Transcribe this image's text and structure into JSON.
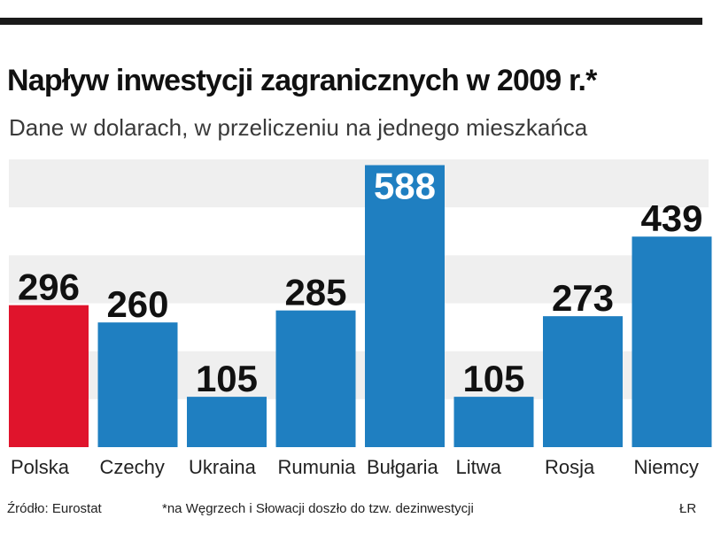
{
  "colors": {
    "highlight": "#e0142c",
    "bar": "#1f7fc1",
    "band": "#efefef",
    "value_dark": "#111111",
    "value_light": "#ffffff"
  },
  "chart_data": {
    "type": "bar",
    "title": "Napływ inwestycji zagranicznych w 2009 r.*",
    "subtitle": "Dane w dolarach, w przeliczeniu na jednego mieszkańca",
    "categories": [
      "Polska",
      "Czechy",
      "Ukraina",
      "Rumunia",
      "Bułgaria",
      "Litwa",
      "Rosja",
      "Niemcy"
    ],
    "values": [
      296,
      260,
      105,
      285,
      588,
      105,
      273,
      439
    ],
    "highlighted": [
      "Polska"
    ],
    "ylim": [
      0,
      600
    ],
    "xlabel": "",
    "ylabel": "",
    "grid": false
  },
  "footer": {
    "source": "Źródło: Eurostat",
    "note": "*na Węgrzech i Słowacji doszło do tzw. dezinwestycji",
    "credit": "ŁR"
  }
}
